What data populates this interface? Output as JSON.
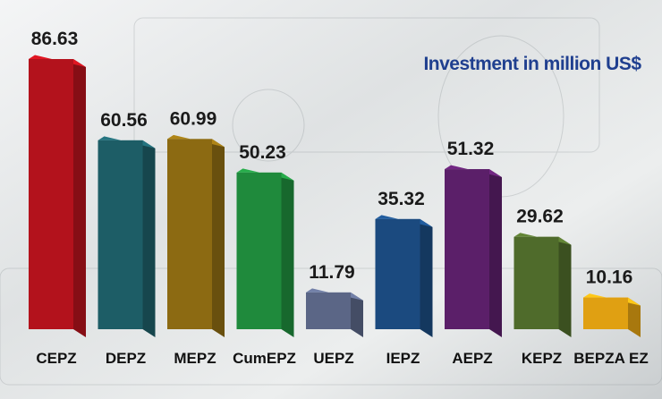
{
  "chart_data": {
    "type": "bar3d",
    "title": "Investment in million US$",
    "categories": [
      "CEPZ",
      "DEPZ",
      "MEPZ",
      "CumEPZ",
      "UEPZ",
      "IEPZ",
      "AEPZ",
      "KEPZ",
      "BEPZA EZ"
    ],
    "values": [
      86.63,
      60.56,
      60.99,
      50.23,
      11.79,
      35.32,
      51.32,
      29.62,
      10.16
    ],
    "colors": [
      "#b3121c",
      "#1d5d66",
      "#8c6a12",
      "#1f8a3c",
      "#5b6686",
      "#1b4a7f",
      "#5b1f69",
      "#4f6b2b",
      "#e0a012"
    ]
  }
}
